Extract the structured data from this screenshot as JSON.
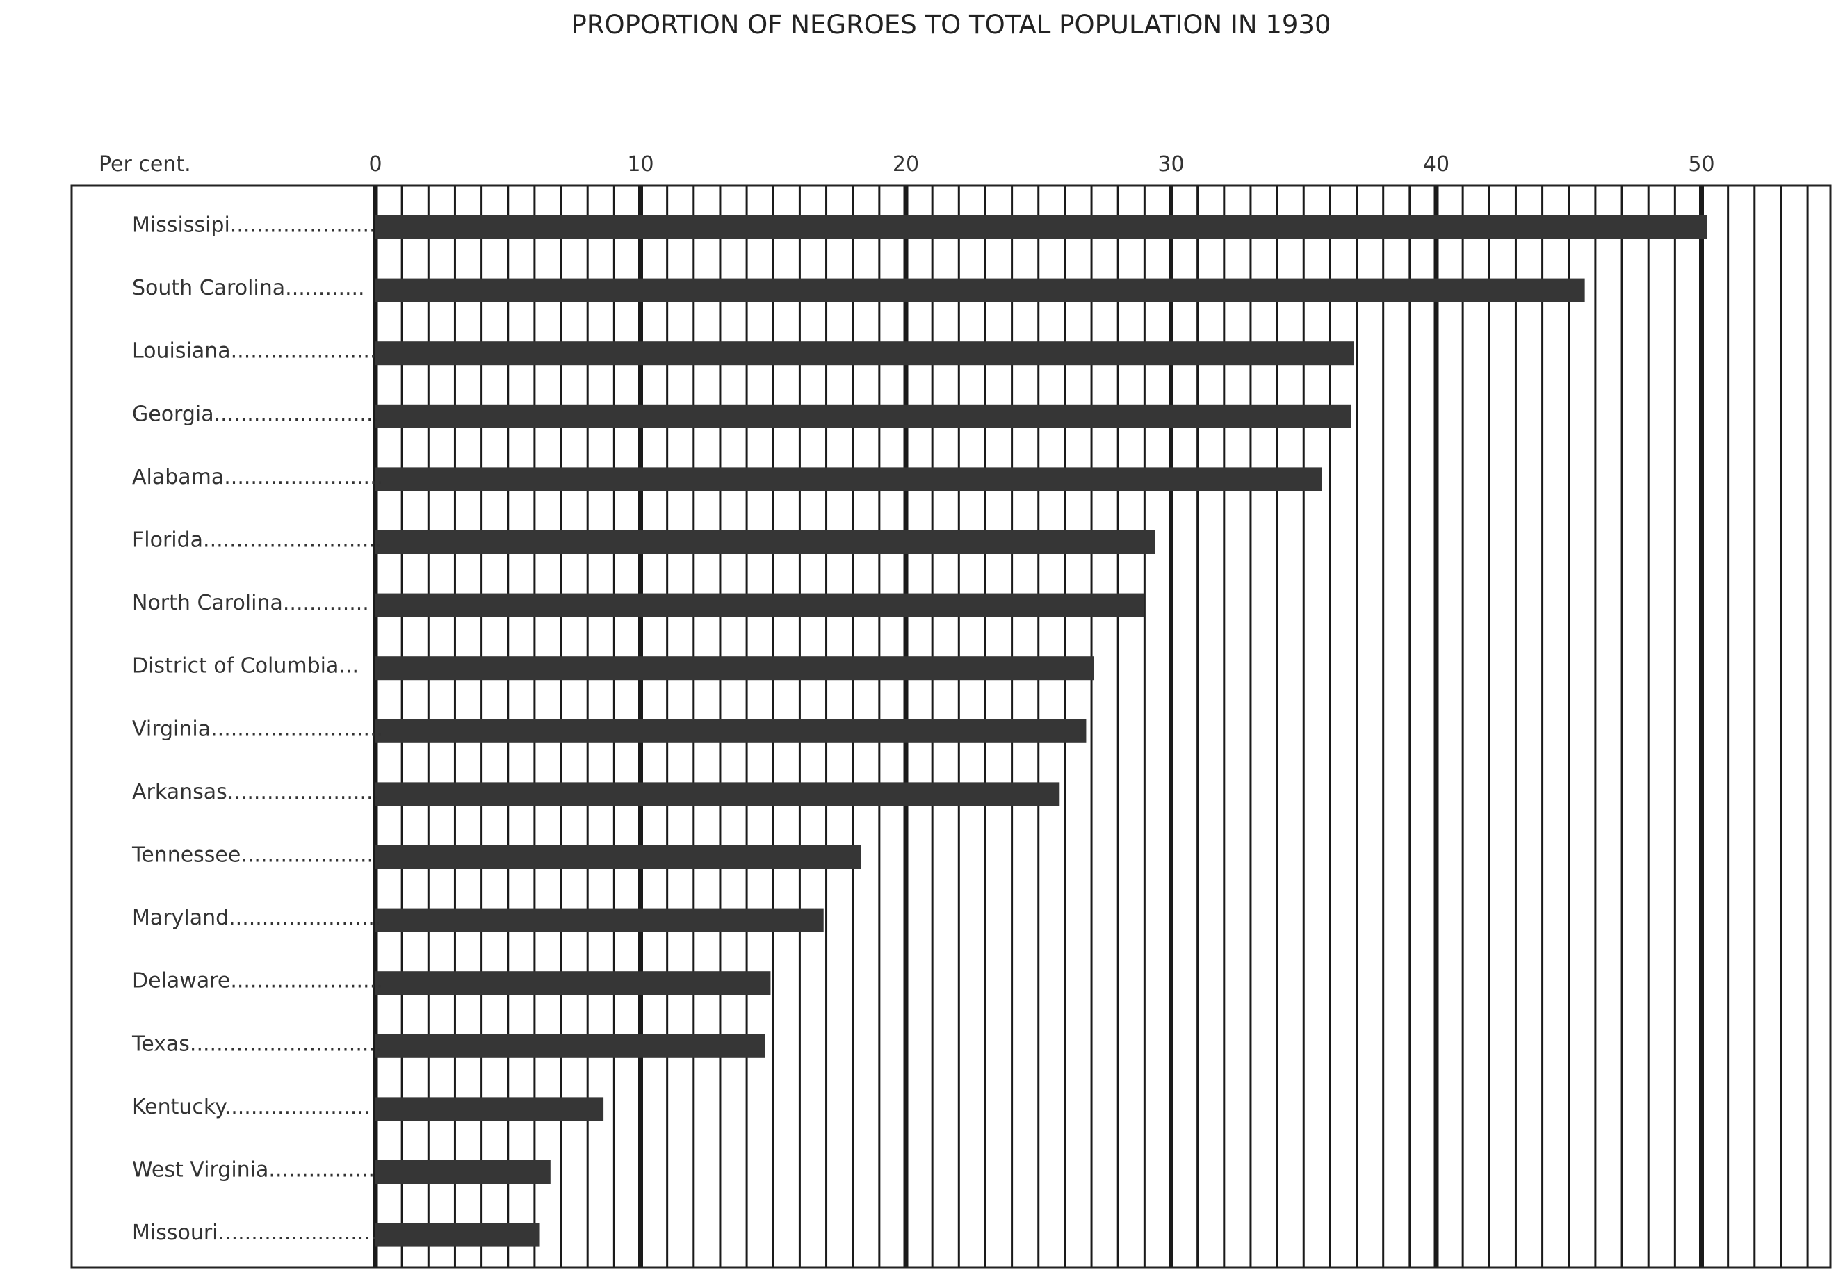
{
  "chart_data": {
    "type": "bar",
    "orientation": "horizontal",
    "title": "PROPORTION OF NEGROES TO TOTAL POPULATION IN 1930",
    "xlabel": "Per cent.",
    "ylabel": "",
    "xlim": [
      0,
      55
    ],
    "x_ticks": [
      0,
      10,
      20,
      30,
      40,
      50
    ],
    "minor_gridline_step": 1,
    "grid": true,
    "categories": [
      "Mississipi......................",
      "South Carolina............",
      "Louisiana......................",
      "Georgia.........................",
      "Alabama........................",
      "Florida...........................",
      "North Carolina.............",
      "District of Columbia...",
      "Virginia..........................",
      "Arkansas.......................",
      "Tennessee....................",
      "Maryland.......................",
      "Delaware.......................",
      "Texas.............................",
      "Kentucky......................",
      "West Virginia................",
      "Missouri........................"
    ],
    "values": [
      50.2,
      45.6,
      36.9,
      36.8,
      35.7,
      29.4,
      29.0,
      27.1,
      26.8,
      25.8,
      18.3,
      16.9,
      14.9,
      14.7,
      8.6,
      6.6,
      6.2
    ],
    "colors": {
      "bar": "#363636",
      "grid": "#1a1a1a",
      "frame": "#222222",
      "text": "#333333"
    }
  }
}
